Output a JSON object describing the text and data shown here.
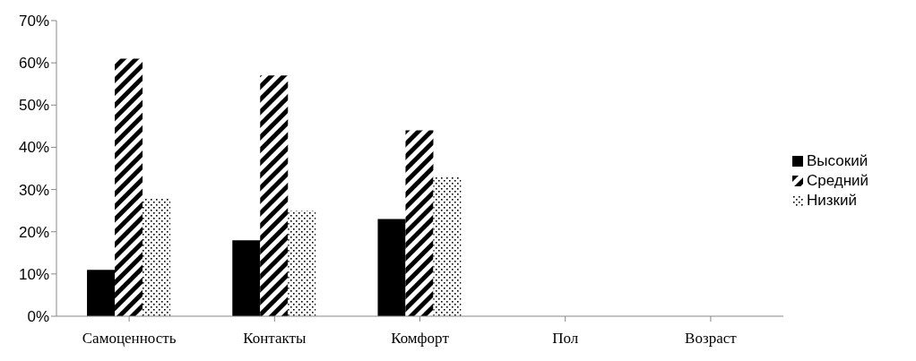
{
  "chart_data": {
    "type": "bar",
    "categories": [
      "Самоценность",
      "Контакты",
      "Комфорт",
      "Пол",
      "Возраст"
    ],
    "series": [
      {
        "name": "Высокий",
        "color": "#000000",
        "values": [
          11,
          18,
          23,
          null,
          null
        ]
      },
      {
        "name": "Средний",
        "color": "#000000",
        "values": [
          61,
          57,
          44,
          null,
          null
        ]
      },
      {
        "name": "Низкий",
        "color": "#000000",
        "values": [
          28,
          25,
          33,
          null,
          null
        ]
      }
    ],
    "ylim": [
      0,
      70
    ],
    "yticks": [
      {
        "value": 0,
        "label": "0%"
      },
      {
        "value": 10,
        "label": "10%"
      },
      {
        "value": 20,
        "label": "20%"
      },
      {
        "value": 30,
        "label": "30%"
      },
      {
        "value": 40,
        "label": "40%"
      },
      {
        "value": 50,
        "label": "50%"
      },
      {
        "value": 60,
        "label": "60%"
      },
      {
        "value": 70,
        "label": "70%"
      }
    ],
    "grid": false,
    "legend": "right"
  }
}
